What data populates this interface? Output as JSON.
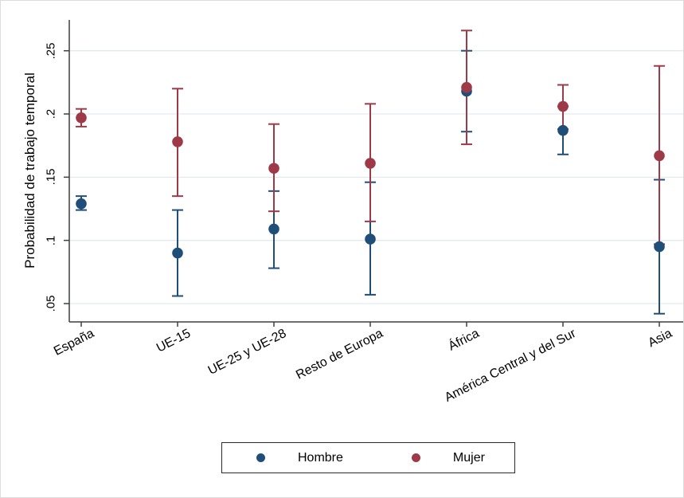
{
  "figure": {
    "background": "#ffffff",
    "border_color": "#dcdcdc"
  },
  "chart_data": {
    "type": "scatter",
    "subtype": "point-estimates-with-95ci-error-bars",
    "title": "",
    "xlabel": "",
    "ylabel": "Probabilidad de trabajo temporal",
    "categories": [
      "España",
      "UE-15",
      "UE-25 y UE-28",
      "Resto de Europa",
      "África",
      "América Central y del Sur",
      "Asia"
    ],
    "series": [
      {
        "name": "Hombre",
        "color": "#1f4e79",
        "values": [
          0.129,
          0.09,
          0.109,
          0.101,
          0.218,
          0.187,
          0.095
        ],
        "ci_low": [
          0.124,
          0.056,
          0.078,
          0.057,
          0.186,
          0.168,
          0.042
        ],
        "ci_high": [
          0.135,
          0.124,
          0.139,
          0.146,
          0.25,
          0.206,
          0.148
        ]
      },
      {
        "name": "Mujer",
        "color": "#9e3a47",
        "values": [
          0.197,
          0.178,
          0.157,
          0.161,
          0.221,
          0.206,
          0.167
        ],
        "ci_low": [
          0.19,
          0.135,
          0.123,
          0.115,
          0.176,
          0.188,
          0.097
        ],
        "ci_high": [
          0.204,
          0.22,
          0.192,
          0.208,
          0.266,
          0.223,
          0.238
        ]
      }
    ],
    "yticks": {
      "values": [
        0.05,
        0.1,
        0.15,
        0.2,
        0.25
      ],
      "labels": [
        ".05",
        ".1",
        ".15",
        ".2",
        ".25"
      ]
    },
    "ylim": [
      0.035,
      0.275
    ],
    "grid": true,
    "gridline_color": "#e2eaf0",
    "axis_color": "#3f3f3f",
    "legend": {
      "position": "bottom-center",
      "border": true,
      "entries": [
        "Hombre",
        "Mujer"
      ]
    }
  }
}
